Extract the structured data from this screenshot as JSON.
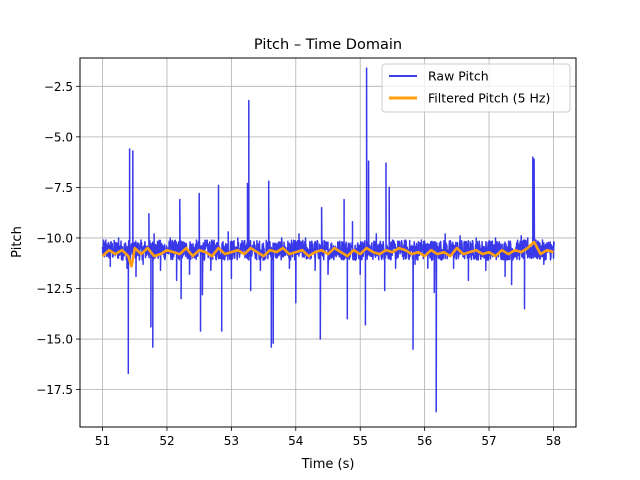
{
  "chart_data": {
    "type": "line",
    "title": "Pitch – Time Domain",
    "xlabel": "Time (s)",
    "ylabel": "Pitch",
    "xlim": [
      50.65,
      58.35
    ],
    "ylim": [
      -19.35,
      -1.1
    ],
    "xticks": [
      51,
      52,
      53,
      54,
      55,
      56,
      57,
      58
    ],
    "xtick_labels": [
      "51",
      "52",
      "53",
      "54",
      "55",
      "56",
      "57",
      "58"
    ],
    "yticks": [
      -17.5,
      -15.0,
      -12.5,
      -10.0,
      -7.5,
      -5.0,
      -2.5
    ],
    "ytick_labels": [
      "−17.5",
      "−15.0",
      "−12.5",
      "−10.0",
      "−7.5",
      "−5.0",
      "−2.5"
    ],
    "grid": true,
    "legend_position": "upper right",
    "series": [
      {
        "name": "Raw Pitch",
        "color": "#2424e8",
        "baseline": -10.6,
        "noise_band": [
          -11.1,
          -10.1
        ],
        "spikes": [
          {
            "x": 51.05,
            "y": -10.1
          },
          {
            "x": 51.12,
            "y": -11.4
          },
          {
            "x": 51.25,
            "y": -10.0
          },
          {
            "x": 51.38,
            "y": -11.5
          },
          {
            "x": 51.4,
            "y": -16.7
          },
          {
            "x": 51.42,
            "y": -5.6
          },
          {
            "x": 51.47,
            "y": -5.7
          },
          {
            "x": 51.52,
            "y": -11.9
          },
          {
            "x": 51.63,
            "y": -11.3
          },
          {
            "x": 51.72,
            "y": -8.8
          },
          {
            "x": 51.75,
            "y": -14.4
          },
          {
            "x": 51.78,
            "y": -15.4
          },
          {
            "x": 51.8,
            "y": -9.8
          },
          {
            "x": 51.9,
            "y": -11.6
          },
          {
            "x": 52.05,
            "y": -10.0
          },
          {
            "x": 52.15,
            "y": -12.1
          },
          {
            "x": 52.2,
            "y": -8.1
          },
          {
            "x": 52.22,
            "y": -13.0
          },
          {
            "x": 52.35,
            "y": -11.8
          },
          {
            "x": 52.5,
            "y": -7.8
          },
          {
            "x": 52.52,
            "y": -14.6
          },
          {
            "x": 52.55,
            "y": -12.8
          },
          {
            "x": 52.68,
            "y": -11.6
          },
          {
            "x": 52.8,
            "y": -7.4
          },
          {
            "x": 52.85,
            "y": -14.6
          },
          {
            "x": 52.95,
            "y": -9.7
          },
          {
            "x": 53.0,
            "y": -12.0
          },
          {
            "x": 53.1,
            "y": -10.0
          },
          {
            "x": 53.25,
            "y": -7.3
          },
          {
            "x": 53.27,
            "y": -3.2
          },
          {
            "x": 53.3,
            "y": -12.6
          },
          {
            "x": 53.45,
            "y": -11.6
          },
          {
            "x": 53.58,
            "y": -7.2
          },
          {
            "x": 53.62,
            "y": -15.4
          },
          {
            "x": 53.65,
            "y": -15.2
          },
          {
            "x": 53.78,
            "y": -10.0
          },
          {
            "x": 53.9,
            "y": -11.5
          },
          {
            "x": 54.0,
            "y": -13.2
          },
          {
            "x": 54.05,
            "y": -9.8
          },
          {
            "x": 54.15,
            "y": -10.0
          },
          {
            "x": 54.3,
            "y": -11.6
          },
          {
            "x": 54.38,
            "y": -15.0
          },
          {
            "x": 54.4,
            "y": -8.5
          },
          {
            "x": 54.5,
            "y": -11.8
          },
          {
            "x": 54.65,
            "y": -10.2
          },
          {
            "x": 54.75,
            "y": -8.1
          },
          {
            "x": 54.8,
            "y": -14.0
          },
          {
            "x": 54.88,
            "y": -9.2
          },
          {
            "x": 55.0,
            "y": -11.8
          },
          {
            "x": 55.08,
            "y": -14.3
          },
          {
            "x": 55.1,
            "y": -1.6
          },
          {
            "x": 55.13,
            "y": -6.2
          },
          {
            "x": 55.25,
            "y": -9.8
          },
          {
            "x": 55.38,
            "y": -12.6
          },
          {
            "x": 55.4,
            "y": -6.3
          },
          {
            "x": 55.45,
            "y": -7.5
          },
          {
            "x": 55.55,
            "y": -11.5
          },
          {
            "x": 55.7,
            "y": -10.1
          },
          {
            "x": 55.82,
            "y": -15.5
          },
          {
            "x": 55.85,
            "y": -11.3
          },
          {
            "x": 55.95,
            "y": -10.1
          },
          {
            "x": 56.05,
            "y": -11.5
          },
          {
            "x": 56.15,
            "y": -12.7
          },
          {
            "x": 56.18,
            "y": -18.6
          },
          {
            "x": 56.2,
            "y": -10.8
          },
          {
            "x": 56.32,
            "y": -9.8
          },
          {
            "x": 56.45,
            "y": -11.5
          },
          {
            "x": 56.55,
            "y": -9.9
          },
          {
            "x": 56.68,
            "y": -12.1
          },
          {
            "x": 56.8,
            "y": -10.0
          },
          {
            "x": 56.95,
            "y": -11.6
          },
          {
            "x": 57.1,
            "y": -10.0
          },
          {
            "x": 57.25,
            "y": -11.9
          },
          {
            "x": 57.35,
            "y": -12.3
          },
          {
            "x": 57.5,
            "y": -9.9
          },
          {
            "x": 57.55,
            "y": -13.5
          },
          {
            "x": 57.6,
            "y": -10.0
          },
          {
            "x": 57.68,
            "y": -6.0
          },
          {
            "x": 57.7,
            "y": -6.1
          },
          {
            "x": 57.72,
            "y": -10.1
          },
          {
            "x": 57.85,
            "y": -11.3
          },
          {
            "x": 57.95,
            "y": -10.2
          },
          {
            "x": 58.0,
            "y": -11.0
          }
        ]
      },
      {
        "name": "Filtered Pitch (5 Hz)",
        "color": "#ff9f0e",
        "x": [
          51.0,
          51.1,
          51.2,
          51.3,
          51.4,
          51.45,
          51.5,
          51.6,
          51.7,
          51.8,
          51.9,
          52.0,
          52.1,
          52.2,
          52.3,
          52.4,
          52.5,
          52.6,
          52.7,
          52.8,
          52.9,
          53.0,
          53.1,
          53.2,
          53.3,
          53.4,
          53.5,
          53.6,
          53.7,
          53.8,
          53.9,
          54.0,
          54.1,
          54.2,
          54.3,
          54.4,
          54.5,
          54.6,
          54.7,
          54.8,
          54.9,
          55.0,
          55.1,
          55.2,
          55.3,
          55.4,
          55.5,
          55.6,
          55.7,
          55.8,
          55.9,
          56.0,
          56.1,
          56.2,
          56.3,
          56.4,
          56.5,
          56.6,
          56.7,
          56.8,
          56.9,
          57.0,
          57.1,
          57.2,
          57.3,
          57.4,
          57.5,
          57.6,
          57.7,
          57.8,
          57.9,
          58.0
        ],
        "y": [
          -10.9,
          -10.6,
          -10.8,
          -10.6,
          -10.9,
          -11.4,
          -10.5,
          -10.8,
          -10.5,
          -10.9,
          -10.8,
          -10.6,
          -10.7,
          -10.8,
          -10.5,
          -10.9,
          -10.6,
          -10.7,
          -10.9,
          -10.5,
          -10.8,
          -10.7,
          -10.6,
          -10.8,
          -10.5,
          -10.7,
          -10.9,
          -10.6,
          -10.7,
          -10.5,
          -10.8,
          -10.7,
          -10.6,
          -10.9,
          -10.7,
          -10.6,
          -10.8,
          -10.5,
          -10.7,
          -10.9,
          -10.6,
          -10.8,
          -10.5,
          -10.7,
          -10.8,
          -10.6,
          -10.7,
          -10.5,
          -10.6,
          -10.8,
          -10.7,
          -10.9,
          -10.6,
          -10.8,
          -10.7,
          -10.9,
          -10.5,
          -10.8,
          -10.7,
          -10.6,
          -10.8,
          -10.7,
          -10.9,
          -10.6,
          -10.8,
          -10.6,
          -10.7,
          -10.5,
          -10.2,
          -10.8,
          -10.6,
          -10.7
        ]
      }
    ]
  }
}
